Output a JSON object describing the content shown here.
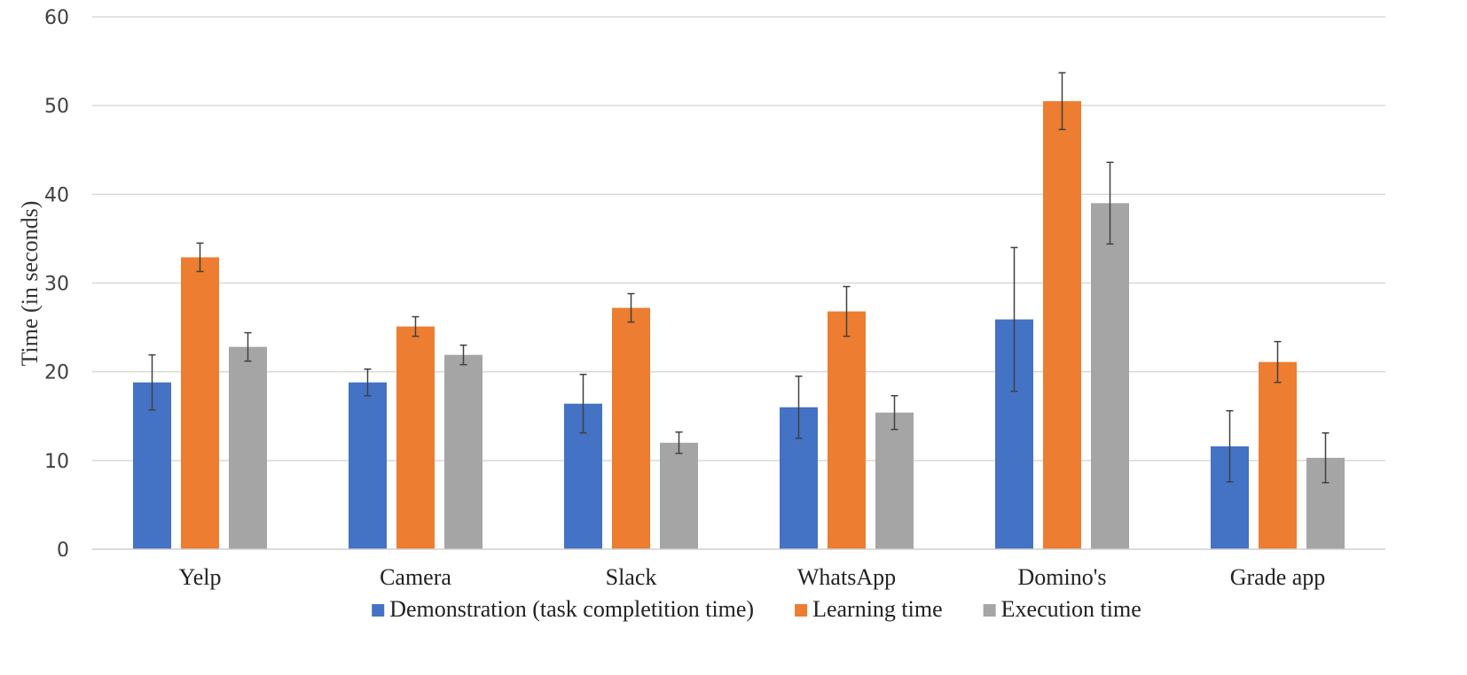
{
  "chart_data": {
    "type": "bar",
    "title": "",
    "xlabel": "",
    "ylabel": "Time (in seconds)",
    "ylim": [
      0,
      60
    ],
    "yticks": [
      0,
      10,
      20,
      30,
      40,
      50,
      60
    ],
    "grid": true,
    "legend_position": "bottom",
    "categories": [
      "Yelp",
      "Camera",
      "Slack",
      "WhatsApp",
      "Domino's",
      "Grade app"
    ],
    "series": [
      {
        "name": "Demonstration (task completition time)",
        "color": "#4472C4",
        "values": [
          18.8,
          18.8,
          16.4,
          16.0,
          25.9,
          11.6
        ],
        "error": [
          3.1,
          1.5,
          3.3,
          3.5,
          8.1,
          4.0
        ]
      },
      {
        "name": "Learning time",
        "color": "#ED7D31",
        "values": [
          32.9,
          25.1,
          27.2,
          26.8,
          50.5,
          21.1
        ],
        "error": [
          1.6,
          1.1,
          1.6,
          2.8,
          3.2,
          2.3
        ]
      },
      {
        "name": "Execution time",
        "color": "#A5A5A5",
        "values": [
          22.8,
          21.9,
          12.0,
          15.4,
          39.0,
          10.3
        ],
        "error": [
          1.6,
          1.1,
          1.2,
          1.9,
          4.6,
          2.8
        ]
      }
    ]
  }
}
